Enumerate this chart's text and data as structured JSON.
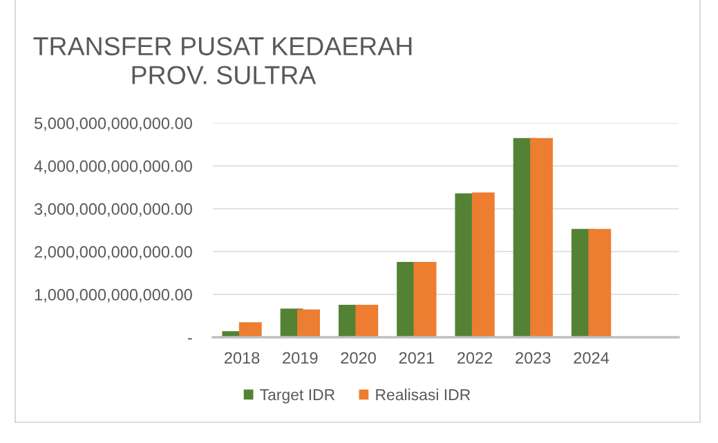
{
  "chart_data": {
    "type": "bar",
    "title": "TRANSFER PUSAT KEDAERAH\nPROV. SULTRA",
    "categories": [
      "2018",
      "2019",
      "2020",
      "2021",
      "2022",
      "2023",
      "2024",
      null
    ],
    "series": [
      {
        "name": "Target IDR",
        "color": "#548235",
        "values": [
          140000000000,
          670000000000,
          760000000000,
          1760000000000,
          3360000000000,
          4650000000000,
          2530000000000,
          null
        ]
      },
      {
        "name": "Realisasi IDR",
        "color": "#ed7d31",
        "values": [
          350000000000,
          650000000000,
          760000000000,
          1760000000000,
          3380000000000,
          4650000000000,
          2530000000000,
          null
        ]
      }
    ],
    "ylim": [
      0,
      5000000000000
    ],
    "yticks": [
      {
        "value": 0,
        "label": "-"
      },
      {
        "value": 1000000000000,
        "label": "1,000,000,000,000.00"
      },
      {
        "value": 2000000000000,
        "label": "2,000,000,000,000.00"
      },
      {
        "value": 3000000000000,
        "label": "3,000,000,000,000.00"
      },
      {
        "value": 4000000000000,
        "label": "4,000,000,000,000.00"
      },
      {
        "value": 5000000000000,
        "label": "5,000,000,000,000.00"
      }
    ],
    "grid": "y",
    "legend": "bottom"
  }
}
